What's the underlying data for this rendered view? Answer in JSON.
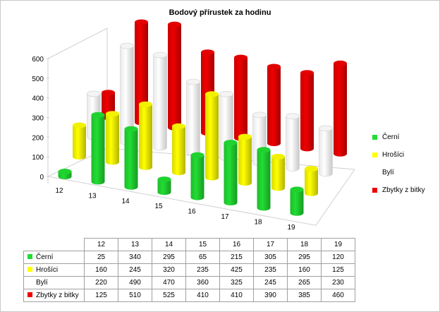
{
  "chart_data": {
    "type": "bar",
    "title": "Bodový přírustek za hodinu",
    "categories": [
      "12",
      "13",
      "14",
      "15",
      "16",
      "17",
      "18",
      "19"
    ],
    "series": [
      {
        "name": "Černí",
        "color": "#22dd33",
        "values": [
          25,
          340,
          295,
          65,
          215,
          305,
          295,
          120
        ]
      },
      {
        "name": "Hrošíci",
        "color": "#ffff00",
        "values": [
          160,
          245,
          320,
          235,
          425,
          235,
          160,
          125
        ]
      },
      {
        "name": "Bylí",
        "color": "#ffffff",
        "values": [
          220,
          490,
          470,
          360,
          325,
          245,
          265,
          230
        ]
      },
      {
        "name": "Zbytky z bitky",
        "color": "#ee0000",
        "values": [
          125,
          510,
          525,
          410,
          410,
          390,
          385,
          460
        ]
      }
    ],
    "yticks": [
      "0",
      "100",
      "200",
      "300",
      "400",
      "500",
      "600"
    ],
    "ylim": [
      0,
      600
    ],
    "legend_position": "right",
    "data_table": true
  }
}
